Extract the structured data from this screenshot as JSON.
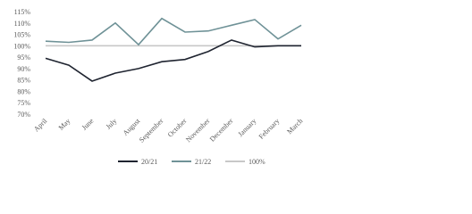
{
  "chart_data": {
    "type": "line",
    "categories": [
      "April",
      "May",
      "June",
      "July",
      "August",
      "September",
      "October",
      "November",
      "December",
      "January",
      "February",
      "March"
    ],
    "series": [
      {
        "name": "20/21",
        "color": "#1f2430",
        "values": [
          94.5,
          91.5,
          84.5,
          88,
          90,
          93,
          94,
          97.5,
          102.5,
          99.5,
          100,
          100
        ]
      },
      {
        "name": "21/22",
        "color": "#6f9297",
        "values": [
          102,
          101.5,
          102.5,
          110,
          100.5,
          112,
          106,
          106.5,
          109,
          111.5,
          103,
          109
        ]
      },
      {
        "name": "100%",
        "color": "#c8c8c8",
        "values": [
          100,
          100,
          100,
          100,
          100,
          100,
          100,
          100,
          100,
          100,
          100,
          100
        ]
      }
    ],
    "ylim": [
      70,
      115
    ],
    "yticks": [
      {
        "value": 70,
        "label": "70%"
      },
      {
        "value": 75,
        "label": "75%"
      },
      {
        "value": 80,
        "label": "80%"
      },
      {
        "value": 85,
        "label": "85%"
      },
      {
        "value": 90,
        "label": "90%"
      },
      {
        "value": 95,
        "label": "95%"
      },
      {
        "value": 100,
        "label": "100%"
      },
      {
        "value": 105,
        "label": "105%"
      },
      {
        "value": 110,
        "label": "110%"
      },
      {
        "value": 115,
        "label": "115%"
      }
    ],
    "grid": false
  }
}
